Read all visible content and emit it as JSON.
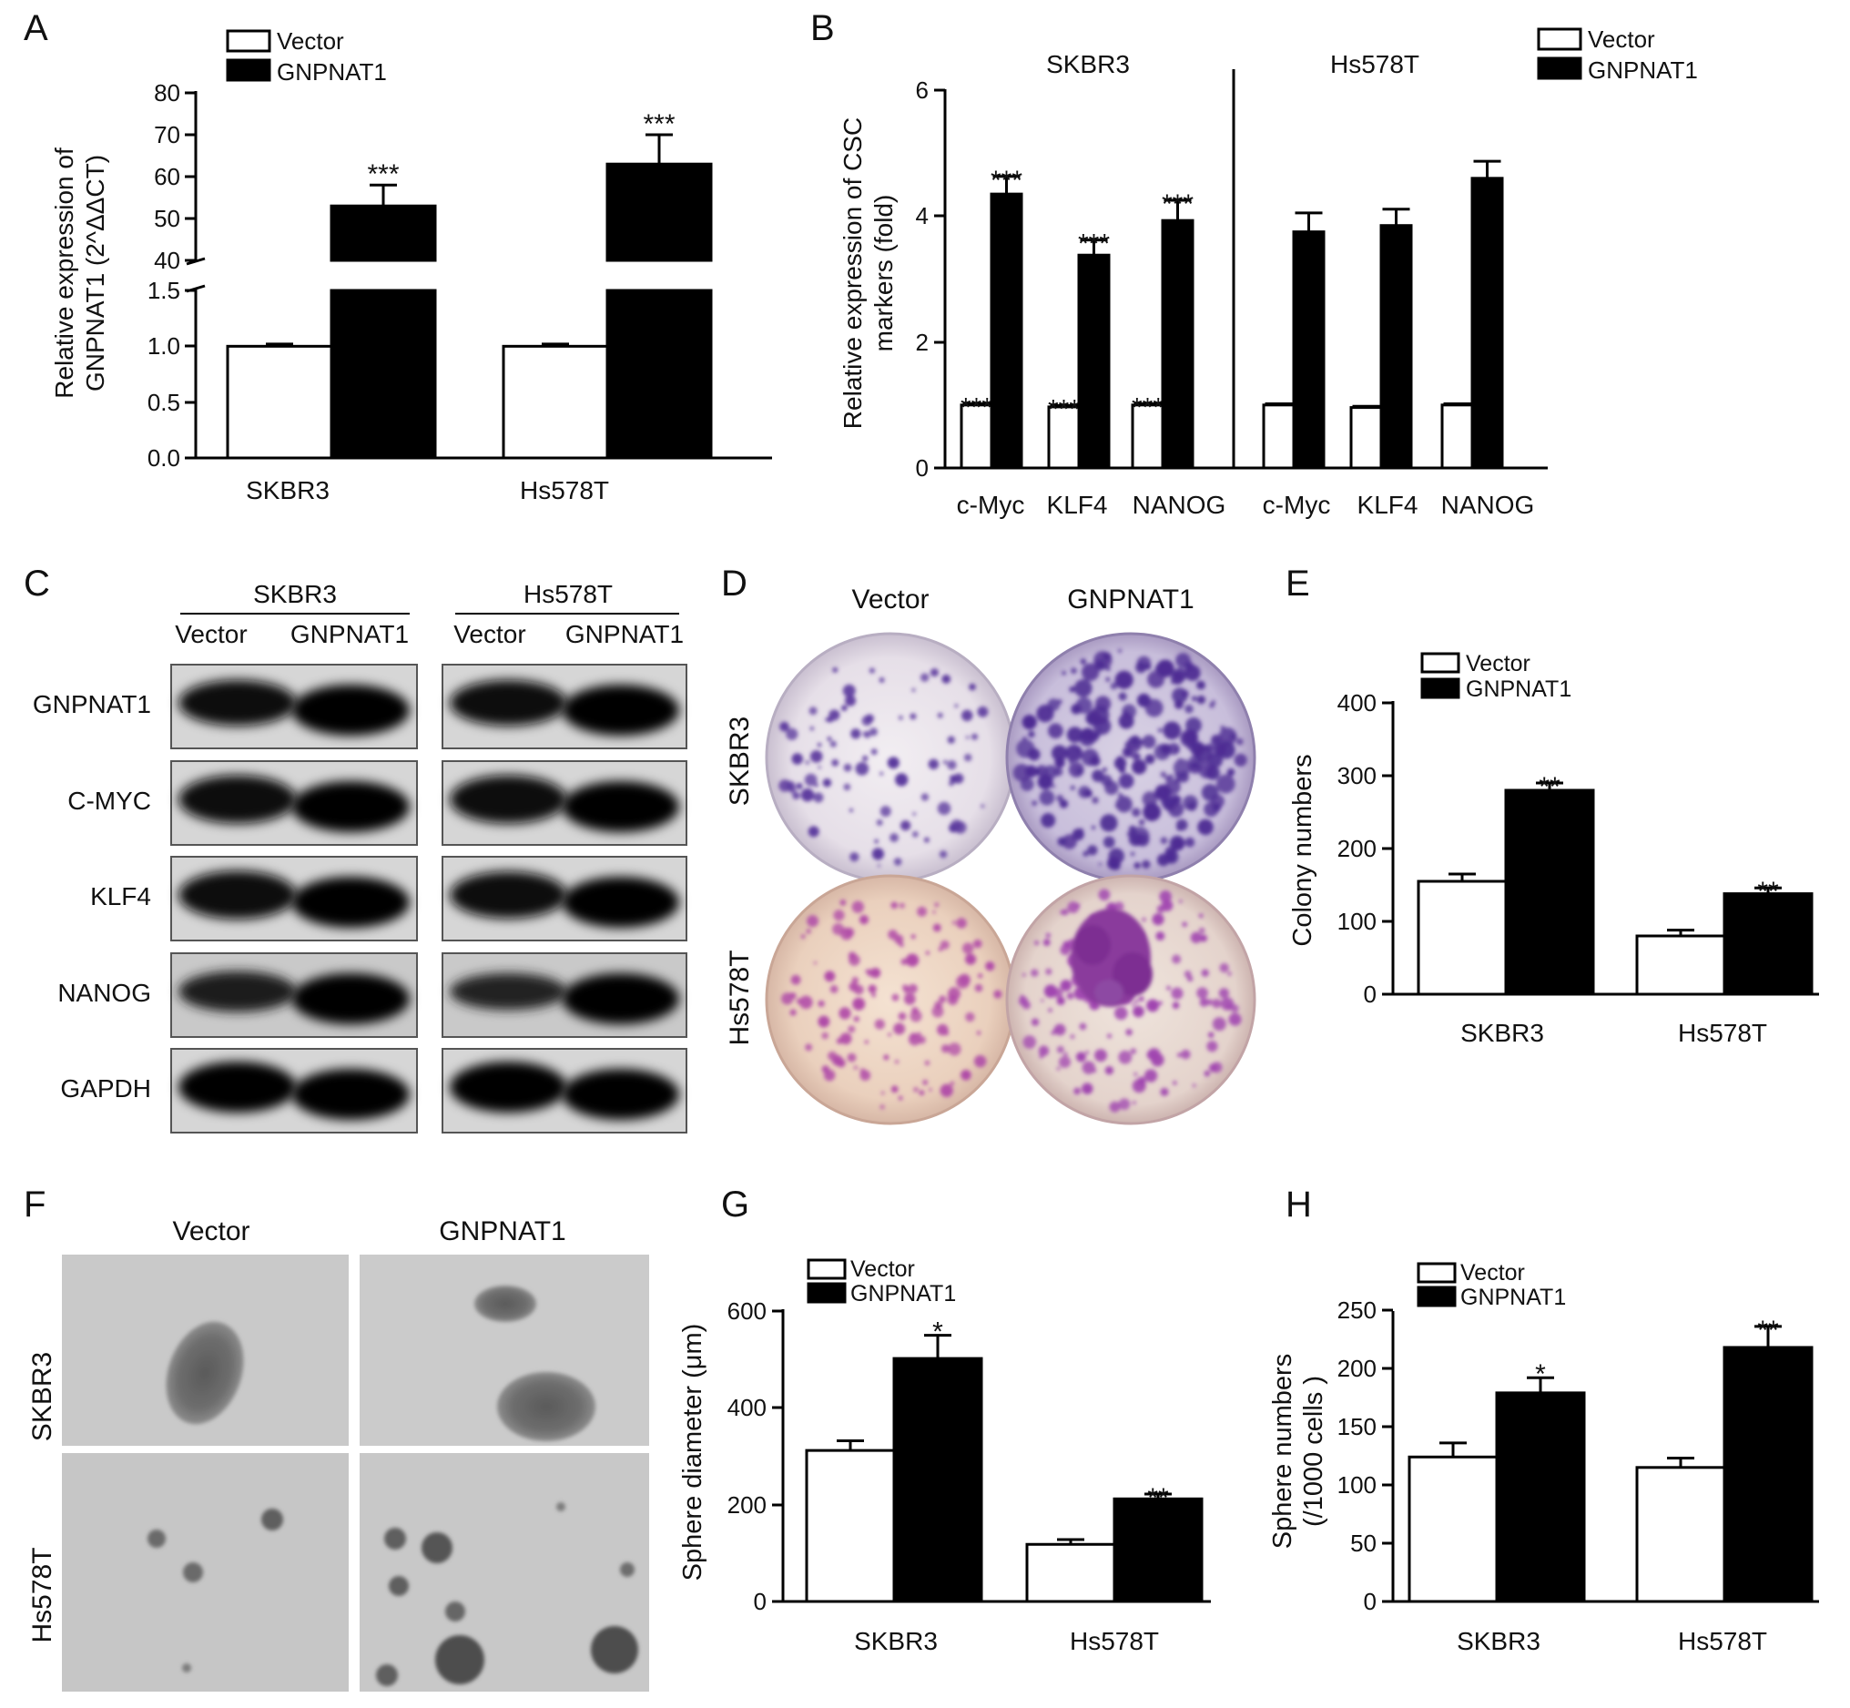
{
  "panel_letters": [
    "A",
    "B",
    "C",
    "D",
    "E",
    "F",
    "G",
    "H"
  ],
  "legend": {
    "vector": "Vector",
    "gnpnat1": "GNPNAT1"
  },
  "colors": {
    "vector_fill": "#ffffff",
    "gnpnat1_fill": "#000000",
    "axis": "#000000"
  },
  "chart_data": [
    {
      "panel": "A",
      "type": "bar",
      "categories": [
        "SKBR3",
        "Hs578T"
      ],
      "series": [
        {
          "name": "Vector",
          "values": [
            1.0,
            1.0
          ],
          "errors": [
            0.02,
            0.02
          ]
        },
        {
          "name": "GNPNAT1",
          "values": [
            53,
            63
          ],
          "errors": [
            5,
            7
          ]
        }
      ],
      "ylabel_lines": [
        "Relative expression of",
        "GNPNAT1 (2^ΔΔCT)"
      ],
      "axis_break": {
        "lower_ylim": [
          0,
          1.5
        ],
        "upper_ylim": [
          40,
          80
        ]
      },
      "lower_ticks": [
        "0.0",
        "0.5",
        "1.0",
        "1.5"
      ],
      "upper_ticks": [
        "40",
        "50",
        "60",
        "70",
        "80"
      ],
      "significance": [
        "",
        "***",
        "",
        "***"
      ]
    },
    {
      "panel": "B",
      "type": "bar",
      "groups": [
        "SKBR3",
        "Hs578T"
      ],
      "categories": [
        "c-Myc",
        "KLF4",
        "NANOG",
        "c-Myc",
        "KLF4",
        "NANOG"
      ],
      "series": [
        {
          "name": "Vector",
          "values": [
            1.0,
            0.97,
            1.0,
            1.0,
            0.96,
            1.0
          ],
          "errors": [
            0.02,
            0.02,
            0.02,
            0.02,
            0.02,
            0.02
          ]
        },
        {
          "name": "GNPNAT1",
          "values": [
            4.35,
            3.38,
            3.93,
            3.75,
            3.85,
            4.6
          ],
          "errors": [
            0.28,
            0.24,
            0.32,
            0.3,
            0.26,
            0.27
          ]
        }
      ],
      "ylabel_lines": [
        "Relative expression of CSC",
        "markers (fold)"
      ],
      "ylim": [
        0,
        6
      ],
      "ticks": [
        "0",
        "2",
        "4",
        "6"
      ],
      "significance": [
        "***",
        "***",
        "***",
        "***",
        "***",
        "***"
      ]
    },
    {
      "panel": "E",
      "type": "bar",
      "categories": [
        "SKBR3",
        "Hs578T"
      ],
      "series": [
        {
          "name": "Vector",
          "values": [
            155,
            80
          ],
          "errors": [
            10,
            8
          ]
        },
        {
          "name": "GNPNAT1",
          "values": [
            280,
            138
          ],
          "errors": [
            10,
            8
          ]
        }
      ],
      "ylabel": "Colony numbers",
      "ylim": [
        0,
        400
      ],
      "ticks": [
        "0",
        "100",
        "200",
        "300",
        "400"
      ],
      "significance": [
        "",
        "**",
        "",
        "**"
      ]
    },
    {
      "panel": "G",
      "type": "bar",
      "categories": [
        "SKBR3",
        "Hs578T"
      ],
      "series": [
        {
          "name": "Vector",
          "values": [
            312,
            118
          ],
          "errors": [
            20,
            10
          ]
        },
        {
          "name": "GNPNAT1",
          "values": [
            502,
            212
          ],
          "errors": [
            48,
            10
          ]
        }
      ],
      "ylabel": "Sphere diameter (μm)",
      "ylim": [
        0,
        600
      ],
      "ticks": [
        "0",
        "200",
        "400",
        "600"
      ],
      "significance": [
        "",
        "*",
        "",
        "**"
      ]
    },
    {
      "panel": "H",
      "type": "bar",
      "categories": [
        "SKBR3",
        "Hs578T"
      ],
      "series": [
        {
          "name": "Vector",
          "values": [
            124,
            115
          ],
          "errors": [
            12,
            8
          ]
        },
        {
          "name": "GNPNAT1",
          "values": [
            179,
            218
          ],
          "errors": [
            13,
            18
          ]
        }
      ],
      "ylabel_lines": [
        "Sphere numbers",
        "(/1000 cells )"
      ],
      "ylim": [
        0,
        250
      ],
      "ticks": [
        "0",
        "50",
        "100",
        "150",
        "200",
        "250"
      ],
      "significance": [
        "",
        "*",
        "",
        "**"
      ]
    }
  ],
  "western_blot": {
    "cell_lines": [
      "SKBR3",
      "Hs578T"
    ],
    "lanes": [
      "Vector",
      "GNPNAT1",
      "Vector",
      "GNPNAT1"
    ],
    "rows": [
      "GNPNAT1",
      "C-MYC",
      "KLF4",
      "NANOG",
      "GAPDH"
    ],
    "band_intensity": [
      [
        0.8,
        1.0,
        0.8,
        1.0
      ],
      [
        0.9,
        1.0,
        0.9,
        1.0
      ],
      [
        0.9,
        1.0,
        0.85,
        1.0
      ],
      [
        0.6,
        1.0,
        0.45,
        1.0
      ],
      [
        1.0,
        1.0,
        1.0,
        1.0
      ]
    ]
  },
  "colony_assay": {
    "columns": [
      "Vector",
      "GNPNAT1"
    ],
    "rows": [
      "SKBR3",
      "Hs578T"
    ]
  },
  "sphere_images": {
    "columns": [
      "Vector",
      "GNPNAT1"
    ],
    "rows": [
      "SKBR3",
      "Hs578T"
    ]
  }
}
